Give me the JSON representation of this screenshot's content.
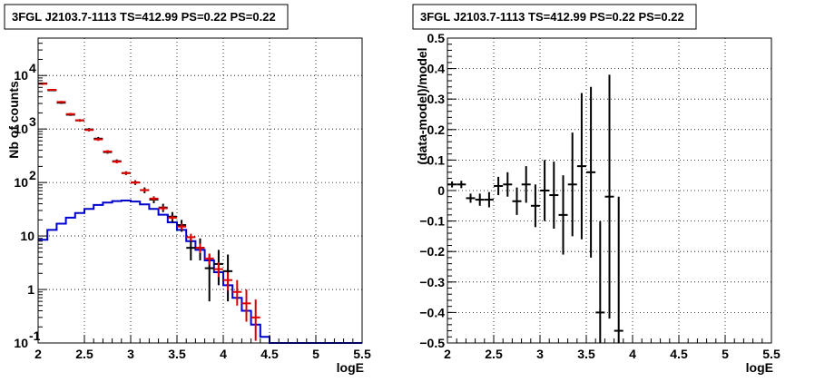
{
  "chart_data": [
    {
      "type": "line",
      "title": "3FGL J2103.7-1113 TS=412.99 PS=0.22 PS=0.22",
      "xlabel": "logE",
      "ylabel": "Nb of counts",
      "xlim": [
        2,
        5.5
      ],
      "ylim": [
        0.1,
        50000
      ],
      "ylog": true,
      "grid": true,
      "xticks": [
        "2",
        "2.5",
        "3",
        "3.5",
        "4",
        "4.5",
        "5",
        "5.5"
      ],
      "yticks": [
        {
          "value": 0.1,
          "label": "10",
          "exp": "-1"
        },
        {
          "value": 1,
          "label": "1",
          "exp": ""
        },
        {
          "value": 10,
          "label": "10",
          "exp": ""
        },
        {
          "value": 100,
          "label": "10",
          "exp": "2"
        },
        {
          "value": 1000,
          "label": "10",
          "exp": "3"
        },
        {
          "value": 10000,
          "label": "10",
          "exp": "4"
        }
      ],
      "series": [
        {
          "color": "#0000cc",
          "kind": "step",
          "bin_width": 0.1,
          "x": [
            2.0,
            2.1,
            2.2,
            2.3,
            2.4,
            2.5,
            2.6,
            2.7,
            2.8,
            2.9,
            3.0,
            3.1,
            3.2,
            3.3,
            3.4,
            3.5,
            3.6,
            3.7,
            3.8,
            3.9,
            4.0,
            4.1,
            4.2,
            4.3,
            4.4,
            4.5,
            4.6,
            4.7,
            4.8,
            4.9,
            5.0,
            5.1,
            5.2,
            5.3,
            5.4
          ],
          "y": [
            8.5,
            13,
            17,
            22,
            27,
            32,
            38,
            42,
            45,
            46,
            44,
            39,
            32,
            25,
            18,
            13,
            8,
            5.5,
            3.5,
            2.1,
            1.2,
            0.7,
            0.4,
            0.22,
            0.13,
            0.1,
            0.1,
            0.1,
            0.1,
            0.1,
            0.1,
            0.1,
            0.1,
            0.1,
            0.1
          ]
        },
        {
          "color": "#dd0000",
          "kind": "model-errorbar",
          "x": [
            2.05,
            2.15,
            2.25,
            2.35,
            2.45,
            2.55,
            2.65,
            2.75,
            2.85,
            2.95,
            3.05,
            3.15,
            3.25,
            3.35,
            3.45,
            3.55,
            3.65,
            3.75,
            3.85,
            3.95,
            4.05,
            4.15,
            4.25,
            4.35
          ],
          "y": [
            7000,
            5400,
            3200,
            1900,
            1450,
            960,
            640,
            380,
            245,
            150,
            100,
            72,
            50,
            33,
            22,
            15,
            9.5,
            6,
            3.8,
            2.4,
            1.5,
            0.9,
            0.55,
            0.3
          ],
          "ylow": [
            6700,
            5200,
            3050,
            1800,
            1380,
            900,
            600,
            355,
            228,
            140,
            93,
            67,
            46,
            30,
            20,
            13,
            8,
            4.8,
            2.9,
            1.7,
            0.95,
            0.5,
            0.25,
            0.11
          ],
          "yhigh": [
            7300,
            5600,
            3350,
            2000,
            1520,
            1020,
            680,
            405,
            262,
            160,
            107,
            77,
            54,
            36,
            24,
            17,
            11,
            7.2,
            4.7,
            3.2,
            2.1,
            1.5,
            1.0,
            0.65
          ]
        },
        {
          "color": "#000000",
          "kind": "data-errorbar",
          "x": [
            2.05,
            2.15,
            2.25,
            2.35,
            2.45,
            2.55,
            2.65,
            2.75,
            2.85,
            2.95,
            3.05,
            3.15,
            3.25,
            3.35,
            3.45,
            3.55,
            3.65,
            3.75,
            3.85,
            3.95,
            4.05
          ],
          "y": [
            7100,
            5300,
            3100,
            1850,
            1450,
            980,
            660,
            370,
            250,
            150,
            100,
            72,
            48,
            34,
            23,
            16,
            6,
            6,
            2.5,
            3,
            2.2
          ],
          "ylow": [
            6800,
            5100,
            2950,
            1760,
            1370,
            920,
            610,
            345,
            230,
            138,
            90,
            63,
            41,
            28,
            18,
            12,
            3.5,
            3.5,
            0.6,
            1.2,
            0.6
          ],
          "yhigh": [
            7400,
            5500,
            3250,
            1940,
            1530,
            1040,
            710,
            395,
            270,
            162,
            110,
            81,
            55,
            40,
            28,
            20,
            9,
            9,
            4.5,
            5.5,
            4.5
          ]
        }
      ]
    },
    {
      "type": "scatter",
      "title": "3FGL J2103.7-1113 TS=412.99 PS=0.22 PS=0.22",
      "xlabel": "logE",
      "ylabel": "(data-model)/model",
      "xlim": [
        2,
        5.5
      ],
      "ylim": [
        -0.5,
        0.5
      ],
      "grid": true,
      "xticks": [
        "2",
        "2.5",
        "3",
        "3.5",
        "4",
        "4.5",
        "5",
        "5.5"
      ],
      "yticks": [
        "−0.5",
        "−0.4",
        "−0.3",
        "−0.2",
        "−0.1",
        "0",
        "0.1",
        "0.2",
        "0.3",
        "0.4",
        "0.5"
      ],
      "series": [
        {
          "color": "#000000",
          "x": [
            2.05,
            2.15,
            2.25,
            2.35,
            2.45,
            2.55,
            2.65,
            2.75,
            2.85,
            2.95,
            3.05,
            3.15,
            3.25,
            3.35,
            3.45,
            3.55,
            3.65,
            3.75,
            3.85
          ],
          "y": [
            0.02,
            0.02,
            -0.025,
            -0.03,
            -0.03,
            0.015,
            0.02,
            -0.035,
            0.02,
            -0.05,
            0.0,
            -0.015,
            -0.08,
            0.02,
            0.08,
            0.06,
            -0.4,
            -0.02,
            -0.46
          ],
          "err": [
            0.01,
            0.012,
            0.015,
            0.02,
            0.025,
            0.03,
            0.04,
            0.045,
            0.06,
            0.07,
            0.1,
            0.11,
            0.13,
            0.17,
            0.24,
            0.28,
            0.3,
            0.4,
            0.44
          ]
        }
      ]
    }
  ]
}
